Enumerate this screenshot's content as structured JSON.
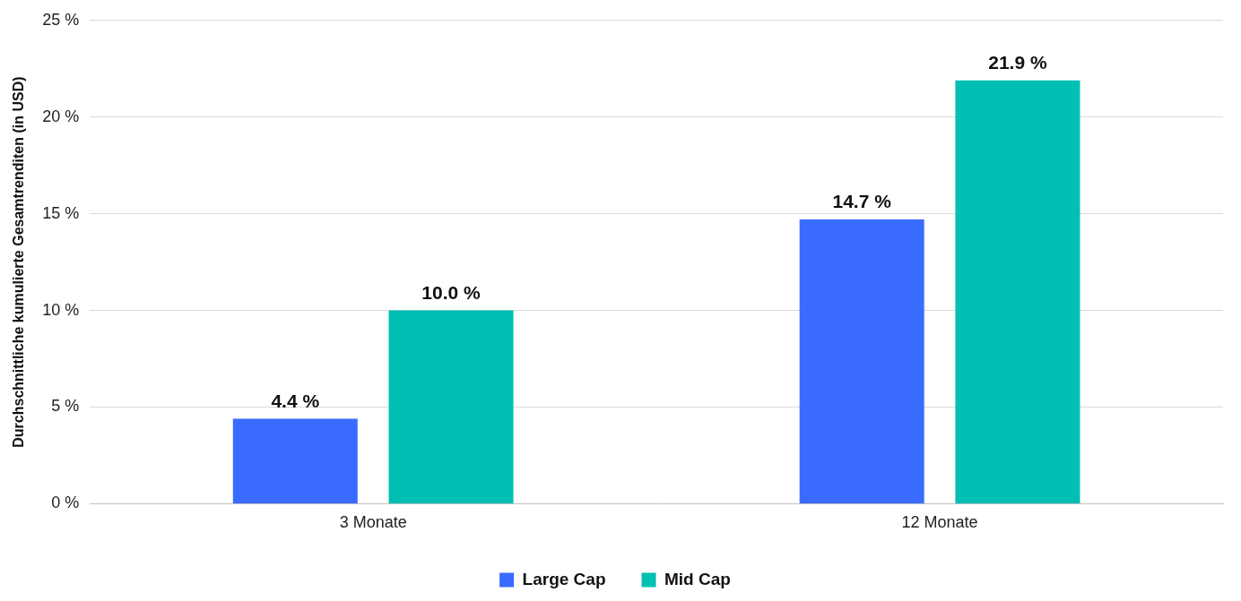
{
  "chart_data": {
    "type": "bar",
    "y_label": "Durchschnittliche kumulierte Gesamtrenditen (in USD)",
    "categories": [
      "3 Monate",
      "12 Monate"
    ],
    "series": [
      {
        "name": "Large Cap",
        "color": "#3a6bff",
        "values": [
          4.4,
          14.7
        ],
        "value_labels": [
          "4.4 %",
          "14.7 %"
        ]
      },
      {
        "name": "Mid Cap",
        "color": "#00bfb3",
        "values": [
          10.0,
          21.9
        ],
        "value_labels": [
          "10.0 %",
          "21.9 %"
        ]
      }
    ],
    "ylim": [
      0,
      25
    ],
    "yticks": [
      {
        "value": 0,
        "label": "0 %"
      },
      {
        "value": 5,
        "label": "5 %"
      },
      {
        "value": 10,
        "label": "10 %"
      },
      {
        "value": 15,
        "label": "15 %"
      },
      {
        "value": 20,
        "label": "20 %"
      },
      {
        "value": 25,
        "label": "25 %"
      }
    ],
    "grid": true,
    "legend": "bottom",
    "data_labels": true
  }
}
